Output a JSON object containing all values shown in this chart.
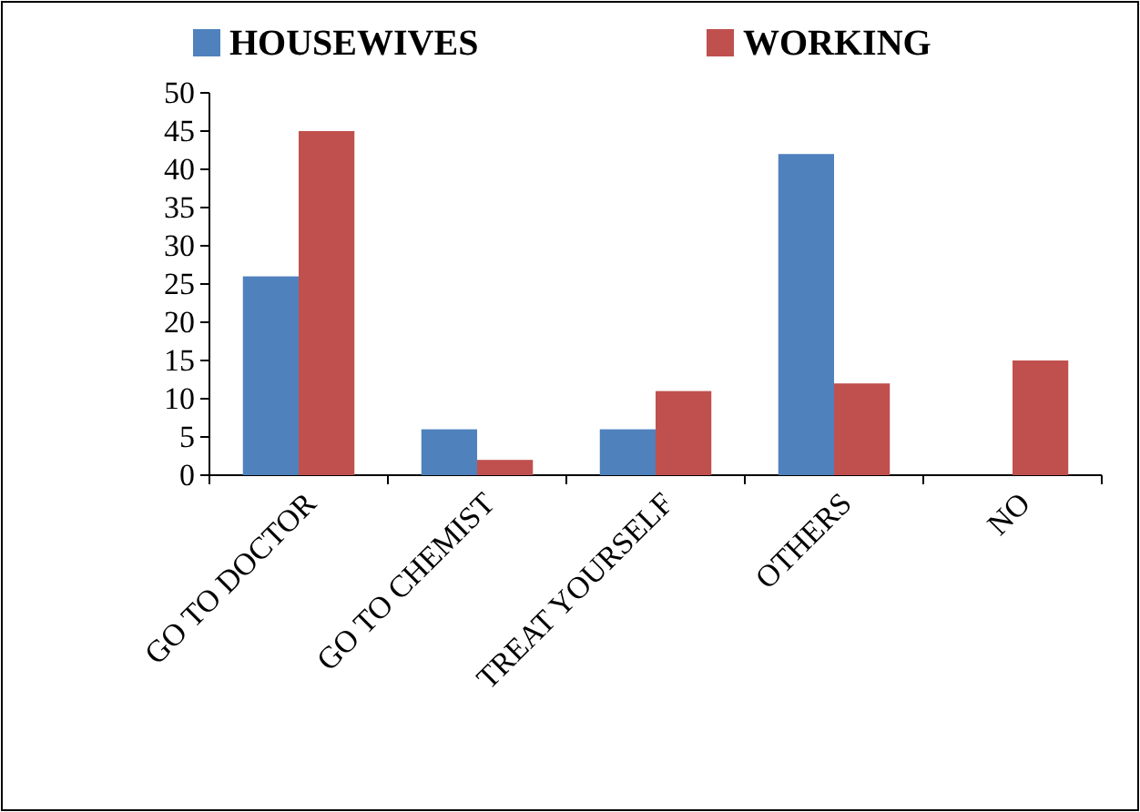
{
  "chart_data": {
    "type": "bar",
    "categories": [
      "GO TO DOCTOR",
      "GO TO CHEMIST",
      "TREAT YOURSELF",
      "OTHERS",
      "NO"
    ],
    "series": [
      {
        "name": "HOUSEWIVES",
        "color": "#4f81bd",
        "values": [
          26,
          6,
          6,
          42,
          0
        ]
      },
      {
        "name": "WORKING",
        "color": "#c0504d",
        "values": [
          45,
          2,
          11,
          12,
          15
        ]
      }
    ],
    "ylim": [
      0,
      50
    ],
    "yticks": [
      0,
      5,
      10,
      15,
      20,
      25,
      30,
      35,
      40,
      45,
      50
    ],
    "grid": false,
    "legend": "top"
  }
}
